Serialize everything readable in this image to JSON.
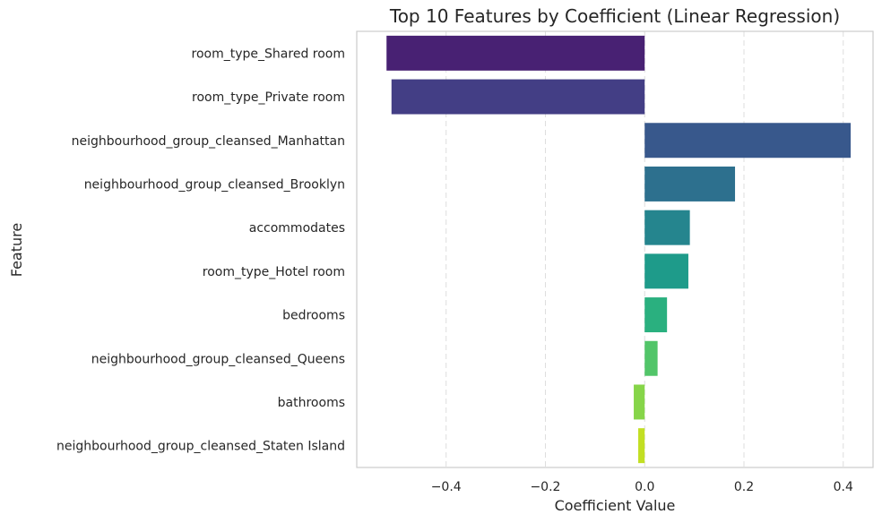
{
  "chart_data": {
    "type": "bar",
    "orientation": "horizontal",
    "title": "Top 10 Features by Coefficient (Linear Regression)",
    "xlabel": "Coefficient Value",
    "ylabel": "Feature",
    "xlim": [
      -0.58,
      0.46
    ],
    "xticks": [
      -0.4,
      -0.2,
      0.0,
      0.2,
      0.4
    ],
    "xtick_labels": [
      "−0.4",
      "−0.2",
      "0.0",
      "0.2",
      "0.4"
    ],
    "grid": "x-dashed",
    "categories": [
      "room_type_Shared room",
      "room_type_Private room",
      "neighbourhood_group_cleansed_Manhattan",
      "neighbourhood_group_cleansed_Brooklyn",
      "accommodates",
      "room_type_Hotel room",
      "bedrooms",
      "neighbourhood_group_cleansed_Queens",
      "bathrooms",
      "neighbourhood_group_cleansed_Staten Island"
    ],
    "values": [
      -0.52,
      -0.51,
      0.415,
      0.182,
      0.091,
      0.088,
      0.045,
      0.026,
      -0.022,
      -0.013
    ],
    "colors": [
      "#482173",
      "#433e85",
      "#38588c",
      "#2d708e",
      "#25858e",
      "#1e9b8a",
      "#2ab07f",
      "#52c569",
      "#86d549",
      "#c2df23"
    ]
  }
}
